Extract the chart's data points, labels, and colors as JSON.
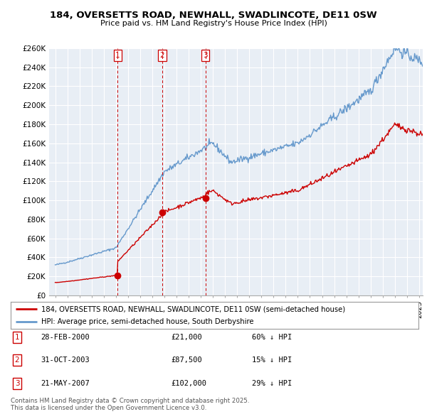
{
  "title": "184, OVERSETTS ROAD, NEWHALL, SWADLINCOTE, DE11 0SW",
  "subtitle": "Price paid vs. HM Land Registry's House Price Index (HPI)",
  "ylim": [
    0,
    260000
  ],
  "yticks": [
    0,
    20000,
    40000,
    60000,
    80000,
    100000,
    120000,
    140000,
    160000,
    180000,
    200000,
    220000,
    240000,
    260000
  ],
  "ytick_labels": [
    "£0",
    "£20K",
    "£40K",
    "£60K",
    "£80K",
    "£100K",
    "£120K",
    "£140K",
    "£160K",
    "£180K",
    "£200K",
    "£220K",
    "£240K",
    "£260K"
  ],
  "background_color": "#ffffff",
  "plot_bg_color": "#e8eef5",
  "grid_color": "#ffffff",
  "transactions": [
    {
      "num": 1,
      "date": "28-FEB-2000",
      "price": 21000,
      "year": 2000.16,
      "hpi_pct": "60%"
    },
    {
      "num": 2,
      "date": "31-OCT-2003",
      "price": 87500,
      "year": 2003.83,
      "hpi_pct": "15%"
    },
    {
      "num": 3,
      "date": "21-MAY-2007",
      "price": 102000,
      "year": 2007.38,
      "hpi_pct": "29%"
    }
  ],
  "legend_label_red": "184, OVERSETTS ROAD, NEWHALL, SWADLINCOTE, DE11 0SW (semi-detached house)",
  "legend_label_blue": "HPI: Average price, semi-detached house, South Derbyshire",
  "footer": "Contains HM Land Registry data © Crown copyright and database right 2025.\nThis data is licensed under the Open Government Licence v3.0.",
  "red_color": "#cc0000",
  "blue_color": "#6699cc",
  "xlim_left": 1995.0,
  "xlim_right": 2025.3
}
